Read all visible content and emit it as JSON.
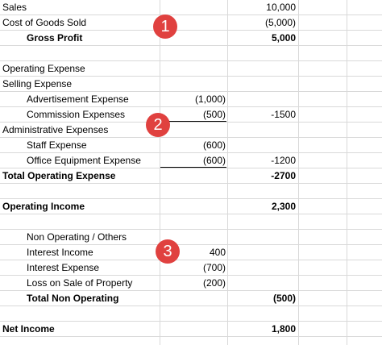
{
  "rows": [
    {
      "a": "Sales",
      "b": "",
      "c": "",
      "d": "10,000"
    },
    {
      "a": "Cost of Goods Sold",
      "b": "",
      "c": "",
      "d": "(5,000)"
    },
    {
      "a": "",
      "b": "Gross Profit",
      "c": "",
      "d": "5,000"
    },
    {
      "a": "",
      "b": "",
      "c": "",
      "d": ""
    },
    {
      "a": "Operating Expense",
      "b": "",
      "c": "",
      "d": ""
    },
    {
      "a": "Selling Expense",
      "b": "",
      "c": "",
      "d": ""
    },
    {
      "a": "",
      "b": "Advertisement Expense",
      "c": "(1,000)",
      "d": ""
    },
    {
      "a": "",
      "b": "Commission Expenses",
      "c": "(500)",
      "d": "-1500"
    },
    {
      "a": "Administrative Expenses",
      "b": "",
      "c": "",
      "d": ""
    },
    {
      "a": "",
      "b": "Staff Expense",
      "c": "(600)",
      "d": ""
    },
    {
      "a": "",
      "b": "Office Equipment Expense",
      "c": "(600)",
      "d": "-1200"
    },
    {
      "a": "Total Operating Expense",
      "b": "",
      "c": "",
      "d": "-2700"
    },
    {
      "a": "",
      "b": "",
      "c": "",
      "d": ""
    },
    {
      "a": "Operating Income",
      "b": "",
      "c": "",
      "d": "2,300"
    },
    {
      "a": "",
      "b": "",
      "c": "",
      "d": ""
    },
    {
      "a": "",
      "b": "Non Operating / Others",
      "c": "",
      "d": ""
    },
    {
      "a": "",
      "b": "Interest Income",
      "c": "400",
      "d": ""
    },
    {
      "a": "",
      "b": "Interest Expense",
      "c": "(700)",
      "d": ""
    },
    {
      "a": "",
      "b": "Loss on Sale of Property",
      "c": "(200)",
      "d": ""
    },
    {
      "a": "",
      "b": "Total Non Operating",
      "c": "",
      "d": "(500)"
    },
    {
      "a": "",
      "b": "",
      "c": "",
      "d": ""
    },
    {
      "a": "Net Income",
      "b": "",
      "c": "",
      "d": "1,800"
    }
  ],
  "markers": [
    "1",
    "2",
    "3"
  ],
  "colors": {
    "marker": "#e0413f",
    "grid": "#d9d9d9"
  }
}
